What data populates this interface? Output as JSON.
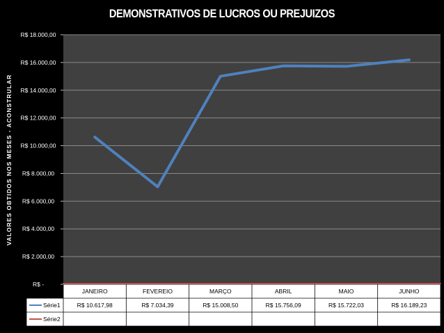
{
  "chart_data": {
    "type": "line",
    "title": "DEMONSTRATIVOS DE LUCROS OU PREJUIZOS",
    "ylabel": "VALORES OBTIDOS NOS MESES - ACONSTRULAR",
    "xlabel": "",
    "categories": [
      "JANEIRO",
      "FEVEREIO",
      "MARÇO",
      "ABRIL",
      "MAIO",
      "JUNHO"
    ],
    "ylim": [
      0,
      18000
    ],
    "y_ticks": [
      {
        "value": 18000,
        "label": "R$ 18.000,00"
      },
      {
        "value": 16000,
        "label": "R$ 16.000,00"
      },
      {
        "value": 14000,
        "label": "R$ 14.000,00"
      },
      {
        "value": 12000,
        "label": "R$ 12.000,00"
      },
      {
        "value": 10000,
        "label": "R$ 10.000,00"
      },
      {
        "value": 8000,
        "label": "R$ 8.000,00"
      },
      {
        "value": 6000,
        "label": "R$ 6.000,00"
      },
      {
        "value": 4000,
        "label": "R$ 4.000,00"
      },
      {
        "value": 2000,
        "label": "R$ 2.000,00"
      },
      {
        "value": 0,
        "label": "R$ -"
      }
    ],
    "grid": true,
    "legend": "data-table",
    "series": [
      {
        "name": "Série1",
        "color": "#4f81bd",
        "values": [
          10617.98,
          7034.39,
          15008.5,
          15756.09,
          15722.03,
          16189.23
        ],
        "labels": [
          "R$ 10.617,98",
          "R$ 7.034,39",
          "R$ 15.008,50",
          "R$ 15.756,09",
          "R$ 15.722,03",
          "R$ 16.189,23"
        ]
      },
      {
        "name": "Série2",
        "color": "#c0504d",
        "values": [
          0,
          0,
          0,
          0,
          0,
          0
        ],
        "labels": [
          "",
          "",
          "",
          "",
          "",
          ""
        ]
      }
    ]
  }
}
